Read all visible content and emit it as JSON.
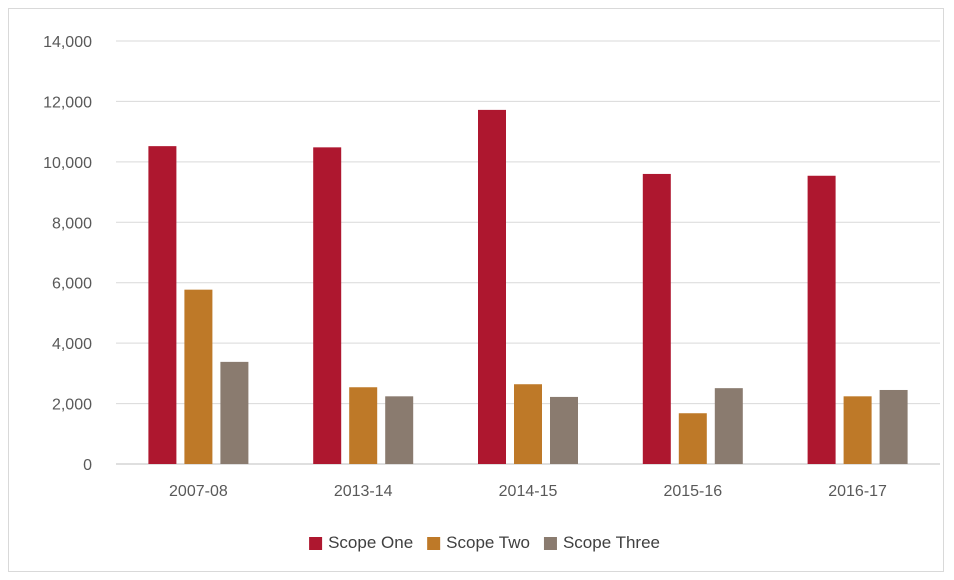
{
  "chart_data": {
    "type": "bar",
    "title": "",
    "xlabel": "",
    "ylabel": "",
    "categories": [
      "2007-08",
      "2013-14",
      "2014-15",
      "2015-16",
      "2016-17"
    ],
    "series": [
      {
        "name": "Scope One",
        "color": "#ae172f",
        "values": [
          10520,
          10480,
          11720,
          9600,
          9540
        ]
      },
      {
        "name": "Scope Two",
        "color": "#be7928",
        "values": [
          5770,
          2540,
          2640,
          1680,
          2240
        ]
      },
      {
        "name": "Scope Three",
        "color": "#8a7b6f",
        "values": [
          3380,
          2240,
          2220,
          2510,
          2450
        ]
      }
    ],
    "ylim": [
      0,
      14000
    ],
    "y_ticks": [
      0,
      2000,
      4000,
      6000,
      8000,
      10000,
      12000,
      14000
    ],
    "y_tick_labels": [
      "0",
      "2,000",
      "4,000",
      "6,000",
      "8,000",
      "10,000",
      "12,000",
      "14,000"
    ],
    "grid": true,
    "legend_position": "bottom"
  }
}
